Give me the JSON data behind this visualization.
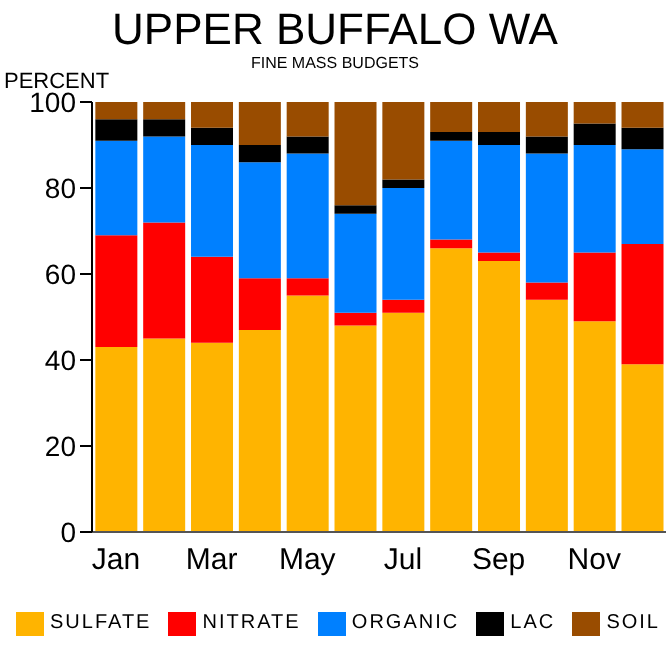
{
  "chart_data": {
    "type": "bar",
    "stacked": true,
    "title": "UPPER BUFFALO WA",
    "subtitle": "FINE MASS BUDGETS",
    "ylabel": "PERCENT",
    "categories": [
      "Jan",
      null,
      "Mar",
      null,
      "May",
      null,
      "Jul",
      null,
      "Sep",
      null,
      "Nov",
      null
    ],
    "series": [
      {
        "name": "SULFATE",
        "color": "#ffb400",
        "values": [
          43,
          45,
          44,
          47,
          55,
          48,
          51,
          66,
          63,
          54,
          49,
          39
        ]
      },
      {
        "name": "NITRATE",
        "color": "#ff0000",
        "values": [
          26,
          27,
          20,
          12,
          4,
          3,
          3,
          2,
          2,
          4,
          16,
          28
        ]
      },
      {
        "name": "ORGANIC",
        "color": "#0080ff",
        "values": [
          22,
          20,
          26,
          27,
          29,
          23,
          26,
          23,
          25,
          30,
          25,
          22
        ]
      },
      {
        "name": "LAC",
        "color": "#000000",
        "values": [
          5,
          4,
          4,
          4,
          4,
          2,
          2,
          2,
          3,
          4,
          5,
          5
        ]
      },
      {
        "name": "SOIL",
        "color": "#994c00",
        "values": [
          4,
          4,
          6,
          10,
          8,
          24,
          18,
          7,
          7,
          8,
          5,
          6
        ]
      }
    ],
    "ylim": [
      0,
      100
    ],
    "yticks": [
      0,
      20,
      40,
      60,
      80,
      100
    ],
    "grid": false,
    "legend": "bottom"
  }
}
